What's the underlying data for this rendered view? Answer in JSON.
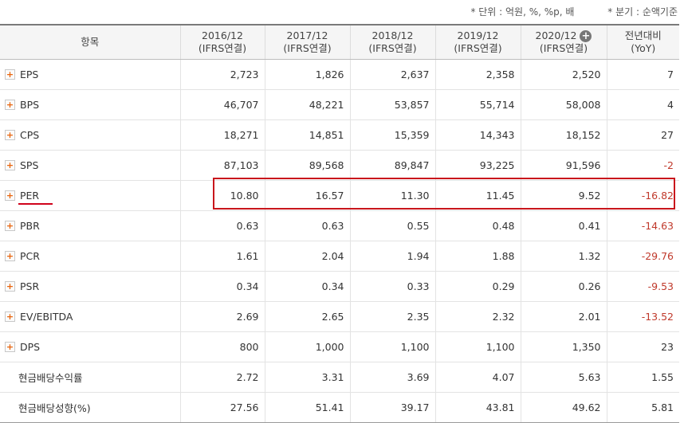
{
  "notes": {
    "unit": "* 단위 : 억원, %, %p, 배",
    "basis": "* 분기 : 순액기준"
  },
  "header": {
    "item": "항목",
    "periods": [
      {
        "year": "2016/12",
        "basis": "(IFRS연결)"
      },
      {
        "year": "2017/12",
        "basis": "(IFRS연결)"
      },
      {
        "year": "2018/12",
        "basis": "(IFRS연결)"
      },
      {
        "year": "2019/12",
        "basis": "(IFRS연결)"
      },
      {
        "year": "2020/12",
        "basis": "(IFRS연결)"
      }
    ],
    "yoy_line1": "전년대비",
    "yoy_line2": "(YoY)",
    "expand_icon": "+"
  },
  "rows": [
    {
      "label": "EPS",
      "values": [
        "2,723",
        "1,826",
        "2,637",
        "2,358",
        "2,520"
      ],
      "yoy": "7"
    },
    {
      "label": "BPS",
      "values": [
        "46,707",
        "48,221",
        "53,857",
        "55,714",
        "58,008"
      ],
      "yoy": "4"
    },
    {
      "label": "CPS",
      "values": [
        "18,271",
        "14,851",
        "15,359",
        "14,343",
        "18,152"
      ],
      "yoy": "27"
    },
    {
      "label": "SPS",
      "values": [
        "87,103",
        "89,568",
        "89,847",
        "93,225",
        "91,596"
      ],
      "yoy": "-2"
    },
    {
      "label": "PER",
      "values": [
        "10.80",
        "16.57",
        "11.30",
        "11.45",
        "9.52"
      ],
      "yoy": "-16.82"
    },
    {
      "label": "PBR",
      "values": [
        "0.63",
        "0.63",
        "0.55",
        "0.48",
        "0.41"
      ],
      "yoy": "-14.63"
    },
    {
      "label": "PCR",
      "values": [
        "1.61",
        "2.04",
        "1.94",
        "1.88",
        "1.32"
      ],
      "yoy": "-29.76"
    },
    {
      "label": "PSR",
      "values": [
        "0.34",
        "0.34",
        "0.33",
        "0.29",
        "0.26"
      ],
      "yoy": "-9.53"
    },
    {
      "label": "EV/EBITDA",
      "values": [
        "2.69",
        "2.65",
        "2.35",
        "2.32",
        "2.01"
      ],
      "yoy": "-13.52"
    },
    {
      "label": "DPS",
      "values": [
        "800",
        "1,000",
        "1,100",
        "1,100",
        "1,350"
      ],
      "yoy": "23"
    },
    {
      "label": "현금배당수익률",
      "values": [
        "2.72",
        "3.31",
        "3.69",
        "4.07",
        "5.63"
      ],
      "yoy": "1.55"
    },
    {
      "label": "현금배당성향(%)",
      "values": [
        "27.56",
        "51.41",
        "39.17",
        "43.81",
        "49.62"
      ],
      "yoy": "5.81"
    }
  ],
  "expand_glyph": "+",
  "colors": {
    "negative": "#c0392b",
    "highlight": "#c9161c",
    "header_bg": "#f5f5f5",
    "expand_plus": "#e8650e"
  }
}
